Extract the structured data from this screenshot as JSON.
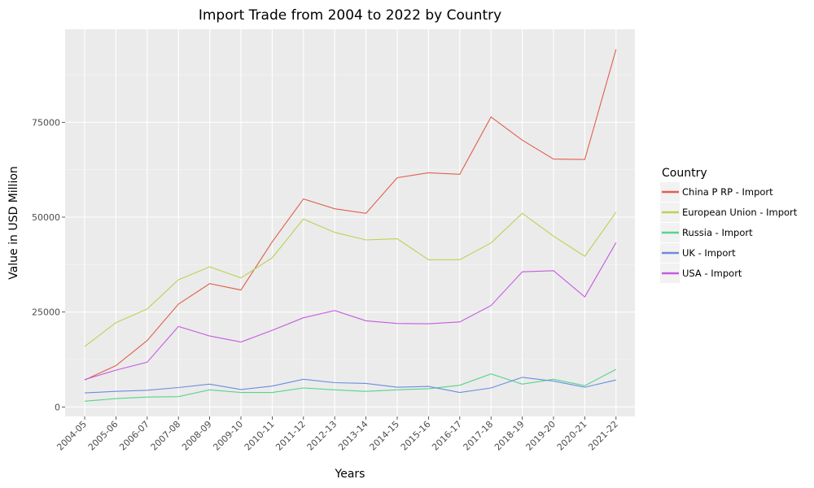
{
  "chart_data": {
    "type": "line",
    "title": "Import Trade from 2004 to 2022 by Country",
    "xlabel": "Years",
    "ylabel": "Value in USD Million",
    "categories": [
      "2004-05",
      "2005-06",
      "2006-07",
      "2007-08",
      "2008-09",
      "2009-10",
      "2010-11",
      "2011-12",
      "2012-13",
      "2013-14",
      "2014-15",
      "2015-16",
      "2016-17",
      "2017-18",
      "2018-19",
      "2019-20",
      "2020-21",
      "2021-22"
    ],
    "ylim": [
      -2500,
      99500
    ],
    "yticks": [
      0,
      25000,
      50000,
      75000
    ],
    "ytick_labels": [
      "0",
      "25000",
      "50000",
      "75000"
    ],
    "grid": true,
    "legend": {
      "title": "Country",
      "position": "right"
    },
    "series": [
      {
        "name": "China P RP - Import",
        "color": "#e0604e",
        "values": [
          7100,
          10900,
          17500,
          27100,
          32500,
          30800,
          43500,
          54800,
          52200,
          51000,
          60400,
          61700,
          61300,
          76400,
          70300,
          65300,
          65200,
          94200
        ]
      },
      {
        "name": "European Union - Import",
        "color": "#b6d452",
        "values": [
          15900,
          22200,
          25800,
          33500,
          36900,
          34000,
          39300,
          49500,
          46000,
          44000,
          44300,
          38800,
          38800,
          43200,
          51000,
          45000,
          39700,
          51300
        ]
      },
      {
        "name": "Russia - Import",
        "color": "#55d48c",
        "values": [
          1500,
          2200,
          2600,
          2700,
          4500,
          3800,
          3800,
          5000,
          4500,
          4100,
          4500,
          4800,
          5700,
          8700,
          6000,
          7300,
          5600,
          9900
        ]
      },
      {
        "name": "UK - Import",
        "color": "#6a8ce0",
        "values": [
          3700,
          4100,
          4400,
          5100,
          6000,
          4600,
          5500,
          7300,
          6400,
          6200,
          5200,
          5400,
          3800,
          5000,
          7800,
          6800,
          5200,
          7100
        ]
      },
      {
        "name": "USA - Import",
        "color": "#c65ae0",
        "values": [
          7200,
          9700,
          11800,
          21200,
          18700,
          17100,
          20200,
          23500,
          25400,
          22700,
          22000,
          21900,
          22400,
          26700,
          35600,
          35900,
          29000,
          43300
        ]
      }
    ]
  }
}
